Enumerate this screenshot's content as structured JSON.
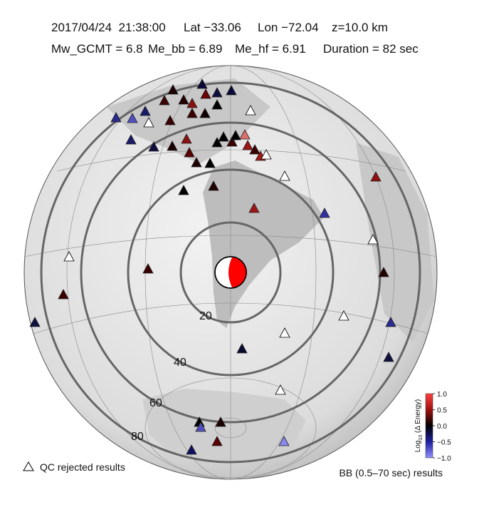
{
  "header": {
    "line1": [
      "2017/04/24  21:38:00",
      "Lat −33.06",
      "Lon −72.04",
      "z=10.0 km"
    ],
    "line2": [
      "Mw_GCMT = 6.8",
      "Me_bb = 6.89",
      "Me_hf = 6.91",
      "Duration = 82 sec"
    ]
  },
  "map": {
    "ring_labels": [
      "20",
      "40",
      "60",
      "80"
    ]
  },
  "colorbar": {
    "title_main": "Log",
    "title_sub": "10",
    "title_rest": " (Δ Energy)",
    "ticks": [
      "1.0",
      "0.5",
      "0.0",
      "−0.5",
      "−1.0"
    ]
  },
  "legend": {
    "qc": "QC rejected results",
    "bb": "BB (0.5–70 sec) results"
  }
}
